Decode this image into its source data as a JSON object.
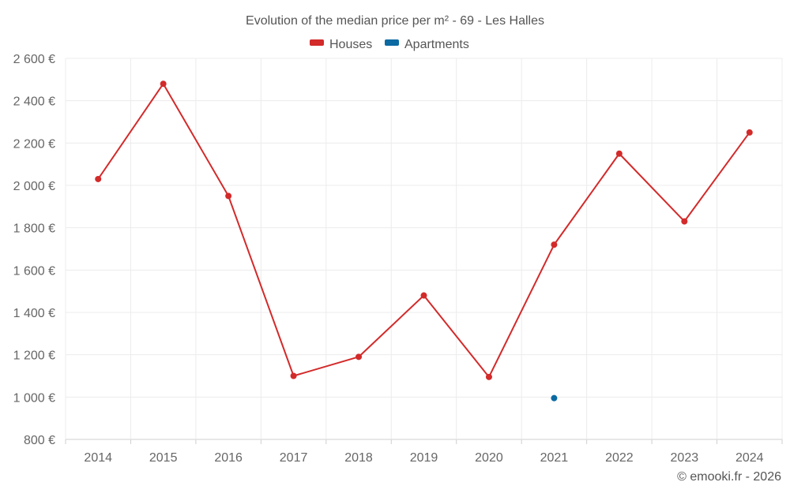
{
  "chart_data": {
    "type": "line",
    "title": "Evolution of the median price per m² - 69 - Les Halles",
    "xlabel": "",
    "ylabel": "",
    "categories": [
      "2014",
      "2015",
      "2016",
      "2017",
      "2018",
      "2019",
      "2020",
      "2021",
      "2022",
      "2023",
      "2024"
    ],
    "ylim": [
      800,
      2600
    ],
    "yticks": [
      800,
      1000,
      1200,
      1400,
      1600,
      1800,
      2000,
      2200,
      2400,
      2600
    ],
    "ytick_labels": [
      "800 €",
      "1 000 €",
      "1 200 €",
      "1 400 €",
      "1 600 €",
      "1 800 €",
      "2 000 €",
      "2 200 €",
      "2 400 €",
      "2 600 €"
    ],
    "grid": true,
    "legend_position": "top-center",
    "series": [
      {
        "name": "Houses",
        "color": "#d32a2a",
        "values": [
          2030,
          2480,
          1950,
          1100,
          1190,
          1480,
          1095,
          1720,
          2150,
          1830,
          2250
        ]
      },
      {
        "name": "Apartments",
        "color": "#0b6aa2",
        "values": [
          null,
          null,
          null,
          null,
          null,
          null,
          null,
          995,
          null,
          null,
          null
        ]
      }
    ]
  },
  "credit": "© emooki.fr - 2026"
}
